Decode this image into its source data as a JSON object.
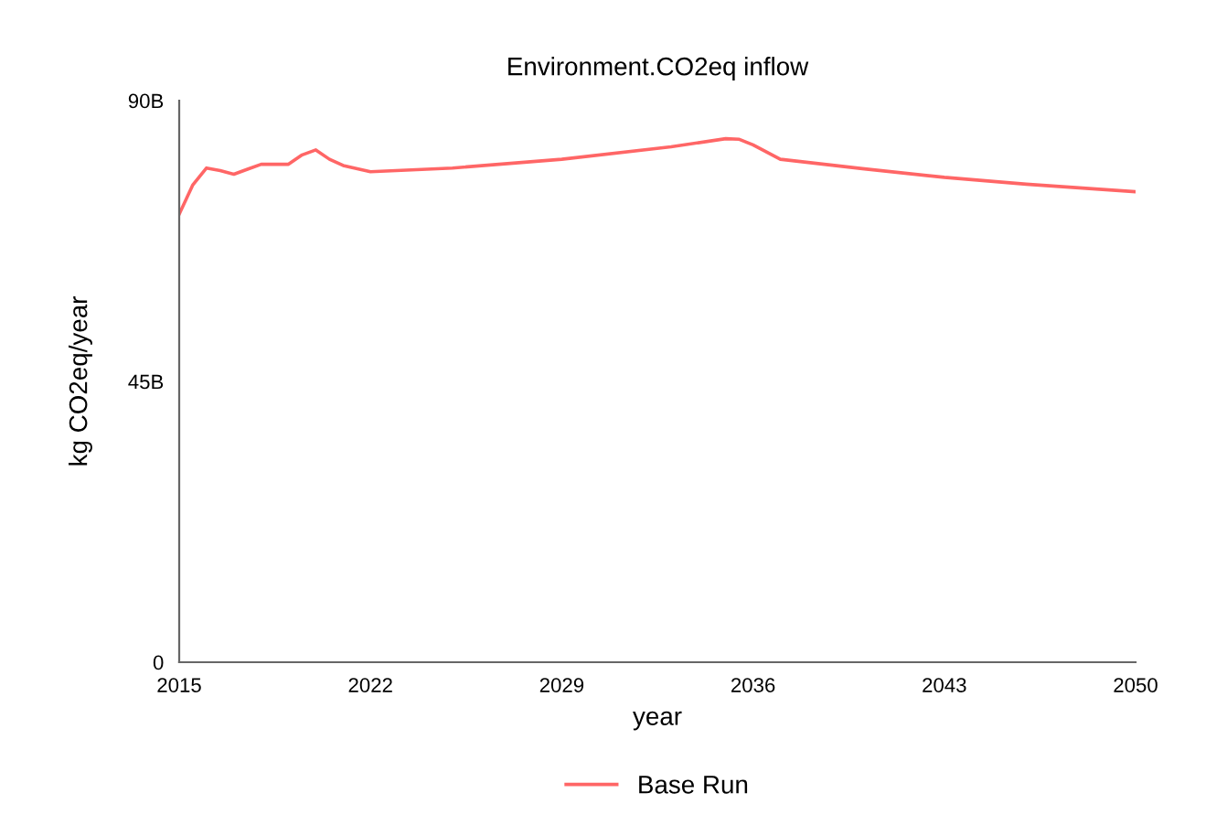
{
  "chart_data": {
    "type": "line",
    "title": "Environment.CO2eq inflow",
    "xlabel": "year",
    "ylabel": "kg CO2eq/year",
    "x": [
      2015,
      2015.5,
      2016,
      2016.5,
      2017,
      2017.5,
      2018,
      2019,
      2019.5,
      2020,
      2020.5,
      2021,
      2022,
      2025,
      2029,
      2033,
      2035,
      2035.5,
      2036,
      2037,
      2040,
      2043,
      2046,
      2050
    ],
    "series": [
      {
        "name": "Base Run",
        "color": "#ff6666",
        "values": [
          71.8,
          76.5,
          79.2,
          78.8,
          78.2,
          79.0,
          79.8,
          79.8,
          81.3,
          82.1,
          80.6,
          79.6,
          78.6,
          79.2,
          80.6,
          82.6,
          83.9,
          83.8,
          82.9,
          80.6,
          79.1,
          77.7,
          76.6,
          75.4
        ]
      }
    ],
    "xlim": [
      2015,
      2050
    ],
    "xticks": [
      2015,
      2022,
      2029,
      2036,
      2043,
      2050
    ],
    "ylim": [
      0,
      90
    ],
    "yticks": [
      {
        "value": 0,
        "label": "0"
      },
      {
        "value": 45,
        "label": "45B"
      },
      {
        "value": 90,
        "label": "90B"
      }
    ],
    "grid": false,
    "legend": "bottom",
    "marker": "none",
    "line_style": "solid"
  }
}
